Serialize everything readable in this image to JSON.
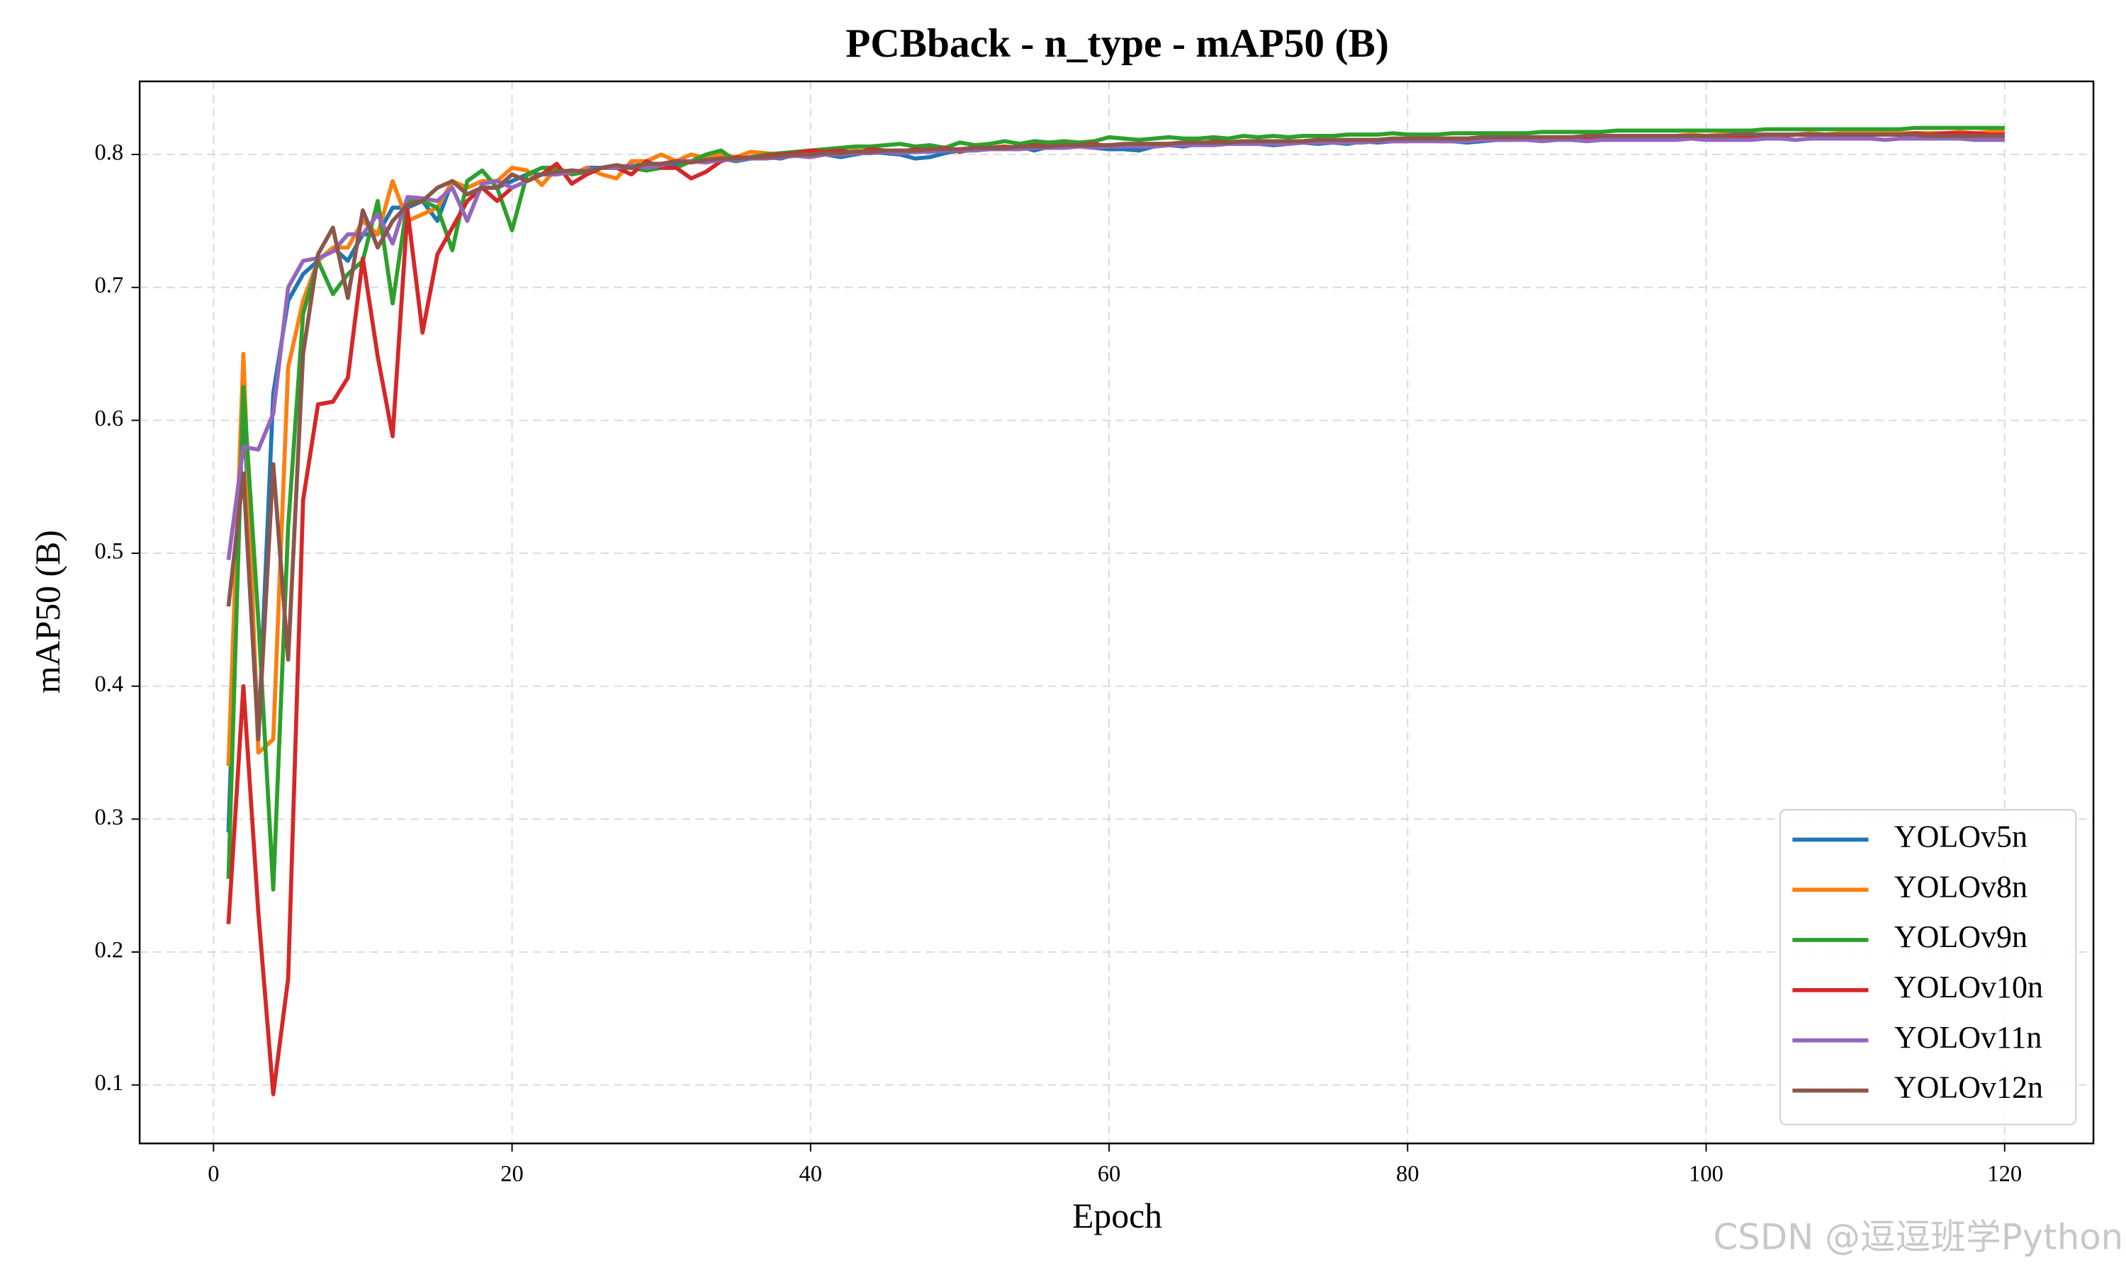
{
  "chart_data": {
    "type": "line",
    "title": "PCBback - n_type - mAP50 (B)",
    "x_label": "Epoch",
    "y_label": "mAP50 (B)",
    "watermark": "CSDN @逗逗班学Python",
    "grid": true,
    "legend": "lower right",
    "xlim": [
      -4.95,
      125.95
    ],
    "ylim": [
      0.056,
      0.855
    ],
    "xticks": [
      0,
      20,
      40,
      60,
      80,
      100,
      120
    ],
    "yticks": [
      0.1,
      0.2,
      0.3,
      0.4,
      0.5,
      0.6,
      0.7,
      0.8
    ],
    "x": [
      1,
      2,
      3,
      4,
      5,
      6,
      7,
      8,
      9,
      10,
      11,
      12,
      13,
      14,
      15,
      16,
      17,
      18,
      19,
      20,
      21,
      22,
      23,
      24,
      25,
      26,
      27,
      28,
      29,
      30,
      31,
      32,
      33,
      34,
      35,
      36,
      37,
      38,
      39,
      40,
      41,
      42,
      43,
      44,
      45,
      46,
      47,
      48,
      49,
      50,
      51,
      52,
      53,
      54,
      55,
      56,
      57,
      58,
      59,
      60,
      61,
      62,
      63,
      64,
      65,
      66,
      67,
      68,
      69,
      70,
      71,
      72,
      73,
      74,
      75,
      76,
      77,
      78,
      79,
      80,
      81,
      82,
      83,
      84,
      85,
      86,
      87,
      88,
      89,
      90,
      91,
      92,
      93,
      94,
      95,
      96,
      97,
      98,
      99,
      100,
      101,
      102,
      103,
      104,
      105,
      106,
      107,
      108,
      109,
      110,
      111,
      112,
      113,
      114,
      115,
      116,
      117,
      118,
      119,
      120
    ],
    "series": [
      {
        "name": "YOLOv5n",
        "color": "#1f77b4",
        "values": [
          0.29,
          0.62,
          0.36,
          0.62,
          0.69,
          0.71,
          0.72,
          0.73,
          0.72,
          0.74,
          0.74,
          0.76,
          0.76,
          0.765,
          0.75,
          0.78,
          0.77,
          0.775,
          0.775,
          0.78,
          0.785,
          0.785,
          0.79,
          0.785,
          0.79,
          0.79,
          0.79,
          0.79,
          0.795,
          0.79,
          0.793,
          0.795,
          0.796,
          0.797,
          0.795,
          0.797,
          0.798,
          0.797,
          0.8,
          0.801,
          0.8,
          0.798,
          0.8,
          0.802,
          0.801,
          0.8,
          0.797,
          0.798,
          0.801,
          0.803,
          0.804,
          0.805,
          0.804,
          0.806,
          0.803,
          0.806,
          0.807,
          0.808,
          0.805,
          0.804,
          0.804,
          0.803,
          0.806,
          0.807,
          0.806,
          0.808,
          0.807,
          0.809,
          0.808,
          0.808,
          0.807,
          0.808,
          0.809,
          0.808,
          0.809,
          0.808,
          0.81,
          0.809,
          0.81,
          0.81,
          0.811,
          0.81,
          0.81,
          0.809,
          0.81,
          0.811,
          0.811,
          0.812,
          0.811,
          0.812,
          0.812,
          0.812,
          0.813,
          0.812,
          0.813,
          0.813,
          0.813,
          0.814,
          0.813,
          0.814,
          0.814,
          0.814,
          0.814,
          0.815,
          0.814,
          0.815,
          0.815,
          0.815,
          0.815,
          0.815,
          0.815,
          0.816,
          0.815,
          0.816,
          0.816,
          0.816,
          0.816,
          0.816,
          0.816,
          0.816
        ]
      },
      {
        "name": "YOLOv8n",
        "color": "#ff7f0e",
        "values": [
          0.34,
          0.65,
          0.35,
          0.36,
          0.64,
          0.69,
          0.72,
          0.73,
          0.73,
          0.75,
          0.74,
          0.78,
          0.75,
          0.755,
          0.76,
          0.78,
          0.775,
          0.78,
          0.78,
          0.79,
          0.788,
          0.777,
          0.79,
          0.785,
          0.79,
          0.785,
          0.782,
          0.795,
          0.795,
          0.8,
          0.795,
          0.8,
          0.797,
          0.8,
          0.798,
          0.802,
          0.801,
          0.8,
          0.802,
          0.801,
          0.802,
          0.801,
          0.803,
          0.802,
          0.803,
          0.802,
          0.803,
          0.804,
          0.803,
          0.804,
          0.804,
          0.805,
          0.805,
          0.806,
          0.805,
          0.806,
          0.807,
          0.806,
          0.807,
          0.807,
          0.807,
          0.808,
          0.808,
          0.808,
          0.809,
          0.808,
          0.809,
          0.809,
          0.81,
          0.809,
          0.81,
          0.81,
          0.81,
          0.811,
          0.81,
          0.811,
          0.811,
          0.811,
          0.812,
          0.811,
          0.812,
          0.812,
          0.812,
          0.812,
          0.813,
          0.812,
          0.813,
          0.813,
          0.813,
          0.813,
          0.813,
          0.814,
          0.813,
          0.814,
          0.814,
          0.814,
          0.814,
          0.814,
          0.815,
          0.814,
          0.815,
          0.815,
          0.815,
          0.815,
          0.815,
          0.815,
          0.816,
          0.815,
          0.816,
          0.816,
          0.816,
          0.816,
          0.816,
          0.816,
          0.816,
          0.816,
          0.817,
          0.816,
          0.817,
          0.817
        ]
      },
      {
        "name": "YOLOv9n",
        "color": "#2ca02c",
        "values": [
          0.255,
          0.625,
          0.45,
          0.247,
          0.52,
          0.68,
          0.72,
          0.695,
          0.71,
          0.72,
          0.765,
          0.688,
          0.765,
          0.765,
          0.76,
          0.728,
          0.78,
          0.788,
          0.775,
          0.743,
          0.785,
          0.79,
          0.79,
          0.785,
          0.787,
          0.79,
          0.79,
          0.79,
          0.788,
          0.79,
          0.79,
          0.795,
          0.8,
          0.803,
          0.795,
          0.798,
          0.8,
          0.801,
          0.802,
          0.803,
          0.804,
          0.805,
          0.806,
          0.806,
          0.807,
          0.808,
          0.806,
          0.807,
          0.805,
          0.809,
          0.807,
          0.808,
          0.81,
          0.808,
          0.81,
          0.809,
          0.81,
          0.809,
          0.81,
          0.813,
          0.812,
          0.811,
          0.812,
          0.813,
          0.812,
          0.812,
          0.813,
          0.812,
          0.814,
          0.813,
          0.814,
          0.813,
          0.814,
          0.814,
          0.814,
          0.815,
          0.815,
          0.815,
          0.816,
          0.815,
          0.815,
          0.815,
          0.816,
          0.816,
          0.816,
          0.816,
          0.816,
          0.816,
          0.817,
          0.817,
          0.817,
          0.817,
          0.817,
          0.818,
          0.818,
          0.818,
          0.818,
          0.818,
          0.818,
          0.818,
          0.818,
          0.818,
          0.818,
          0.819,
          0.819,
          0.819,
          0.819,
          0.819,
          0.819,
          0.819,
          0.819,
          0.819,
          0.819,
          0.82,
          0.82,
          0.82,
          0.82,
          0.82,
          0.82,
          0.82
        ]
      },
      {
        "name": "YOLOv10n",
        "color": "#d62728",
        "values": [
          0.221,
          0.4,
          0.23,
          0.093,
          0.18,
          0.54,
          0.612,
          0.614,
          0.632,
          0.722,
          0.648,
          0.588,
          0.758,
          0.666,
          0.725,
          0.745,
          0.765,
          0.775,
          0.765,
          0.775,
          0.78,
          0.785,
          0.793,
          0.778,
          0.785,
          0.79,
          0.79,
          0.785,
          0.795,
          0.79,
          0.79,
          0.782,
          0.787,
          0.795,
          0.798,
          0.797,
          0.799,
          0.8,
          0.801,
          0.803,
          0.802,
          0.803,
          0.801,
          0.804,
          0.803,
          0.802,
          0.804,
          0.803,
          0.805,
          0.802,
          0.804,
          0.805,
          0.806,
          0.805,
          0.807,
          0.806,
          0.805,
          0.807,
          0.808,
          0.806,
          0.807,
          0.808,
          0.807,
          0.808,
          0.809,
          0.808,
          0.81,
          0.809,
          0.81,
          0.81,
          0.809,
          0.81,
          0.81,
          0.811,
          0.81,
          0.811,
          0.81,
          0.811,
          0.811,
          0.812,
          0.812,
          0.811,
          0.812,
          0.812,
          0.813,
          0.812,
          0.813,
          0.812,
          0.813,
          0.813,
          0.813,
          0.813,
          0.814,
          0.813,
          0.814,
          0.814,
          0.814,
          0.813,
          0.814,
          0.814,
          0.813,
          0.814,
          0.814,
          0.815,
          0.814,
          0.815,
          0.815,
          0.815,
          0.815,
          0.815,
          0.815,
          0.815,
          0.815,
          0.816,
          0.815,
          0.816,
          0.816,
          0.816,
          0.815,
          0.815
        ]
      },
      {
        "name": "YOLOv11n",
        "color": "#9467bd",
        "values": [
          0.495,
          0.58,
          0.578,
          0.605,
          0.7,
          0.72,
          0.722,
          0.727,
          0.74,
          0.74,
          0.755,
          0.733,
          0.768,
          0.767,
          0.765,
          0.775,
          0.75,
          0.778,
          0.78,
          0.775,
          0.78,
          0.785,
          0.785,
          0.787,
          0.788,
          0.79,
          0.79,
          0.792,
          0.79,
          0.792,
          0.795,
          0.795,
          0.794,
          0.796,
          0.796,
          0.797,
          0.797,
          0.798,
          0.799,
          0.798,
          0.8,
          0.8,
          0.801,
          0.801,
          0.802,
          0.801,
          0.802,
          0.802,
          0.803,
          0.803,
          0.803,
          0.804,
          0.804,
          0.804,
          0.805,
          0.805,
          0.805,
          0.806,
          0.805,
          0.806,
          0.806,
          0.806,
          0.806,
          0.807,
          0.807,
          0.807,
          0.807,
          0.808,
          0.808,
          0.808,
          0.808,
          0.808,
          0.809,
          0.809,
          0.809,
          0.809,
          0.809,
          0.81,
          0.81,
          0.81,
          0.81,
          0.81,
          0.81,
          0.81,
          0.811,
          0.811,
          0.811,
          0.811,
          0.81,
          0.811,
          0.811,
          0.81,
          0.811,
          0.811,
          0.811,
          0.811,
          0.811,
          0.811,
          0.812,
          0.811,
          0.811,
          0.811,
          0.811,
          0.812,
          0.812,
          0.811,
          0.812,
          0.812,
          0.812,
          0.812,
          0.812,
          0.811,
          0.812,
          0.812,
          0.812,
          0.812,
          0.812,
          0.811,
          0.811,
          0.811
        ]
      },
      {
        "name": "YOLOv12n",
        "color": "#8c564b",
        "values": [
          0.46,
          0.56,
          0.36,
          0.567,
          0.42,
          0.65,
          0.725,
          0.745,
          0.692,
          0.758,
          0.73,
          0.75,
          0.762,
          0.765,
          0.775,
          0.78,
          0.77,
          0.775,
          0.775,
          0.785,
          0.78,
          0.785,
          0.787,
          0.788,
          0.787,
          0.79,
          0.792,
          0.79,
          0.793,
          0.793,
          0.795,
          0.794,
          0.796,
          0.797,
          0.797,
          0.798,
          0.798,
          0.799,
          0.8,
          0.8,
          0.801,
          0.801,
          0.802,
          0.802,
          0.803,
          0.803,
          0.803,
          0.804,
          0.804,
          0.804,
          0.805,
          0.805,
          0.805,
          0.806,
          0.806,
          0.806,
          0.807,
          0.807,
          0.807,
          0.807,
          0.808,
          0.808,
          0.808,
          0.808,
          0.809,
          0.809,
          0.809,
          0.809,
          0.81,
          0.81,
          0.81,
          0.81,
          0.81,
          0.811,
          0.811,
          0.811,
          0.811,
          0.811,
          0.812,
          0.812,
          0.812,
          0.812,
          0.812,
          0.812,
          0.813,
          0.813,
          0.813,
          0.813,
          0.813,
          0.813,
          0.813,
          0.814,
          0.814,
          0.814,
          0.814,
          0.814,
          0.814,
          0.814,
          0.814,
          0.814,
          0.814,
          0.815,
          0.815,
          0.815,
          0.815,
          0.815,
          0.815,
          0.815,
          0.815,
          0.815,
          0.815,
          0.815,
          0.815,
          0.815,
          0.814,
          0.814,
          0.814,
          0.814,
          0.814,
          0.814
        ]
      }
    ]
  }
}
